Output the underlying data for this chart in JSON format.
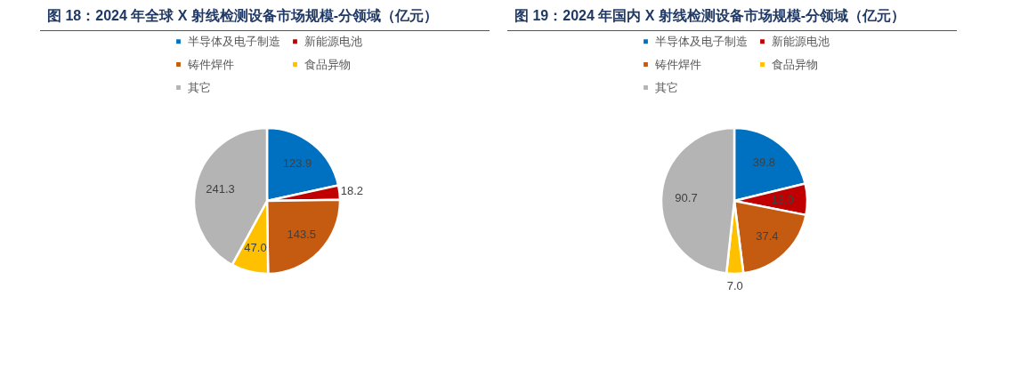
{
  "chart_data": [
    {
      "type": "pie",
      "title": "图 18：2024 年全球 X 射线检测设备市场规模-分领域（亿元）",
      "categories": [
        "半导体及电子制造",
        "新能源电池",
        "铸件焊件",
        "食品异物",
        "其它"
      ],
      "values": [
        123.9,
        18.2,
        143.5,
        47.0,
        241.3
      ],
      "value_labels": [
        "123.9",
        "18.2",
        "143.5",
        "47.0",
        "241.3"
      ],
      "colors": [
        "#0070c0",
        "#c00000",
        "#c55a11",
        "#ffc000",
        "#b4b4b4"
      ],
      "legend": "top"
    },
    {
      "type": "pie",
      "title": "图 19：2024 年国内 X 射线检测设备市场规模-分领域（亿元）",
      "categories": [
        "半导体及电子制造",
        "新能源电池",
        "铸件焊件",
        "食品异物",
        "其它"
      ],
      "values": [
        39.8,
        13.0,
        37.4,
        7.0,
        90.7
      ],
      "value_labels": [
        "39.8",
        "13.0",
        "37.4",
        "7.0",
        "90.7"
      ],
      "colors": [
        "#0070c0",
        "#c00000",
        "#c55a11",
        "#ffc000",
        "#b4b4b4"
      ],
      "legend": "top"
    }
  ]
}
